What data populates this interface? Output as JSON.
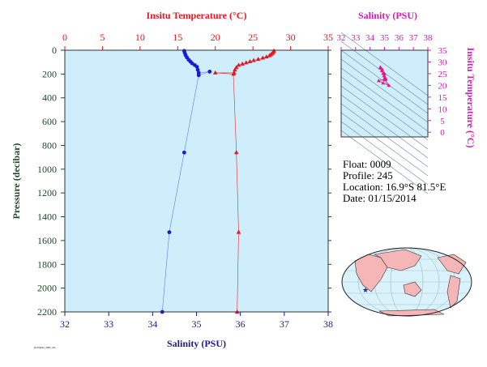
{
  "colors": {
    "temperature": "#e8141e",
    "salinity": "#1b1bd6",
    "pressure_axis": "#1f4a2a",
    "panel_bg": "#cdeefa",
    "inset_axis": "#d21bb4",
    "inset_points": "#e8148c",
    "land": "#f4b6b6",
    "ocean": "#d9f2fb"
  },
  "info": {
    "float_label": "Float:",
    "float_value": "0009",
    "profile_label": "Profile:",
    "profile_value": "245",
    "location_label": "Location:",
    "location_value": "16.9°S  81.5°E",
    "date_label": "Date:",
    "date_value": "01/15/2014"
  },
  "footer_tiny": "ProfilePlot_0009_245",
  "chart_data": [
    {
      "type": "line",
      "top_axis_label": "Insitu Temperature (°C)",
      "bottom_axis_label": "Salinity (PSU)",
      "ylabel": "Pressure (decibar)",
      "temp_lim": [
        0,
        35
      ],
      "temp_ticks": [
        0,
        5,
        10,
        15,
        20,
        25,
        30,
        35
      ],
      "sal_lim": [
        32,
        38
      ],
      "sal_ticks": [
        "32",
        "33",
        "34",
        "35",
        "36",
        "37",
        "38"
      ],
      "ylim": [
        0,
        2200
      ],
      "y_ticks": [
        0,
        200,
        400,
        600,
        800,
        1000,
        1200,
        1400,
        1600,
        1800,
        2000,
        2200
      ],
      "y_reversed": true,
      "series": [
        {
          "name": "Temperature",
          "axis": "top",
          "marker": "triangle",
          "points": [
            [
              27.8,
              5
            ],
            [
              27.7,
              15
            ],
            [
              27.6,
              25
            ],
            [
              27.4,
              35
            ],
            [
              27.2,
              45
            ],
            [
              26.8,
              55
            ],
            [
              26.3,
              65
            ],
            [
              25.7,
              75
            ],
            [
              25.1,
              85
            ],
            [
              24.6,
              95
            ],
            [
              24.1,
              105
            ],
            [
              23.6,
              115
            ],
            [
              23.1,
              125
            ],
            [
              22.8,
              145
            ],
            [
              22.6,
              165
            ],
            [
              22.5,
              190
            ],
            [
              20.0,
              190
            ],
            [
              22.4,
              200
            ],
            [
              22.8,
              860
            ],
            [
              23.1,
              1530
            ],
            [
              22.9,
              2200
            ]
          ]
        },
        {
          "name": "Salinity",
          "axis": "bottom",
          "marker": "circle",
          "points": [
            [
              34.72,
              5
            ],
            [
              34.73,
              20
            ],
            [
              34.75,
              40
            ],
            [
              34.78,
              60
            ],
            [
              34.82,
              80
            ],
            [
              34.86,
              95
            ],
            [
              34.9,
              110
            ],
            [
              34.96,
              125
            ],
            [
              35.01,
              140
            ],
            [
              35.03,
              165
            ],
            [
              35.05,
              190
            ],
            [
              35.3,
              180
            ],
            [
              35.05,
              210
            ],
            [
              34.72,
              860
            ],
            [
              34.38,
              1530
            ],
            [
              34.22,
              2200
            ]
          ]
        }
      ]
    },
    {
      "type": "scatter",
      "title": "Salinity (PSU)",
      "xlabel": "Salinity (PSU)",
      "ylabel": "Insitu Temperature (°C)",
      "xlim": [
        32,
        38
      ],
      "ylim": [
        -2,
        35
      ],
      "x_ticks": [
        "32",
        "33",
        "34",
        "35",
        "36",
        "37",
        "38"
      ],
      "y_ticks": [
        "0",
        "5",
        "10",
        "15",
        "20",
        "25",
        "30",
        "35"
      ],
      "points": [
        [
          34.72,
          27.8
        ],
        [
          34.75,
          27.4
        ],
        [
          34.82,
          26.3
        ],
        [
          34.9,
          25.1
        ],
        [
          34.96,
          24.1
        ],
        [
          35.01,
          23.1
        ],
        [
          35.03,
          22.6
        ],
        [
          35.05,
          22.4
        ],
        [
          35.3,
          20.0
        ],
        [
          34.9,
          21.0
        ],
        [
          34.6,
          22.0
        ],
        [
          35.1,
          22.8
        ],
        [
          35.0,
          25.0
        ],
        [
          34.85,
          26.8
        ],
        [
          34.7,
          27.6
        ]
      ]
    }
  ]
}
